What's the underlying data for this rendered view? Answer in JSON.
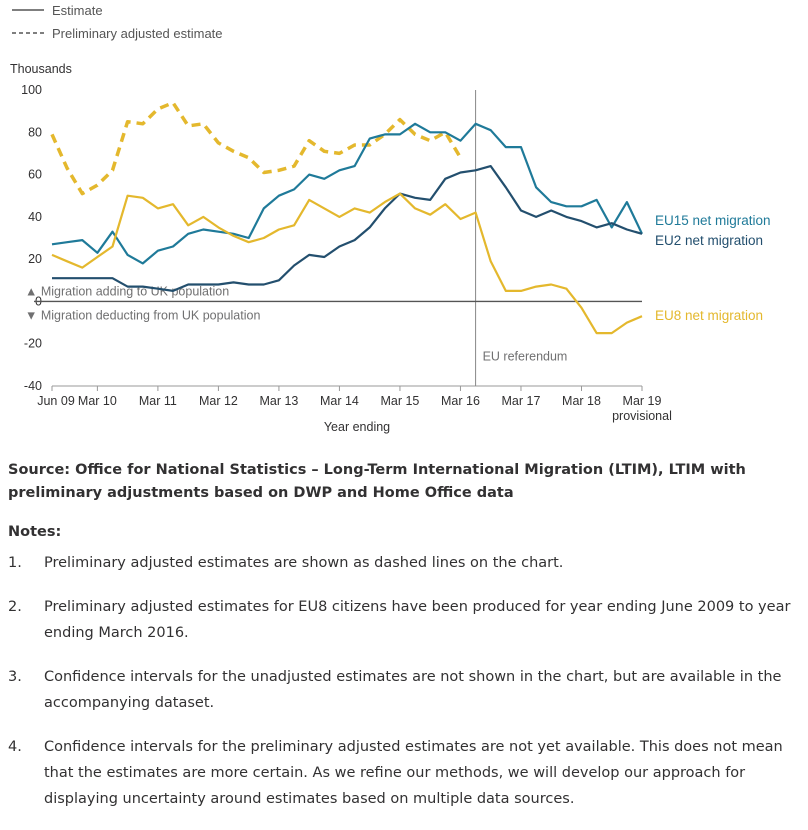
{
  "chart_data": {
    "type": "line",
    "legend": {
      "position": "top-left",
      "estimate_label": "Estimate",
      "adjusted_label": "Preliminary adjusted estimate"
    },
    "ylabel": "Thousands",
    "xlabel": "Year ending",
    "ylim": [
      -40,
      100
    ],
    "yticks": [
      -40,
      -20,
      0,
      20,
      40,
      60,
      80,
      100
    ],
    "xticks": [
      {
        "label": "Jun 09",
        "index": 0
      },
      {
        "label": "Mar 10",
        "index": 3
      },
      {
        "label": "Mar 11",
        "index": 7
      },
      {
        "label": "Mar 12",
        "index": 11
      },
      {
        "label": "Mar 13",
        "index": 15
      },
      {
        "label": "Mar 14",
        "index": 19
      },
      {
        "label": "Mar 15",
        "index": 23
      },
      {
        "label": "Mar 16",
        "index": 27
      },
      {
        "label": "Mar 17",
        "index": 31
      },
      {
        "label": "Mar 18",
        "index": 35
      },
      {
        "label": "Mar 19",
        "sublabel": "provisional",
        "index": 39
      }
    ],
    "period_count": 40,
    "reference_line": {
      "index": 28,
      "label": "EU referendum"
    },
    "zero_annotations": {
      "above": "▲ Migration adding to UK population",
      "below": "▼ Migration deducting from UK population"
    },
    "series": [
      {
        "name": "EU15 net migration",
        "color": "#1f7a99",
        "style": "solid",
        "values": [
          27,
          28,
          29,
          23,
          33,
          22,
          18,
          24,
          26,
          32,
          34,
          33,
          32,
          30,
          44,
          50,
          53,
          60,
          58,
          62,
          64,
          77,
          79,
          79,
          84,
          80,
          80,
          76,
          84,
          81,
          73,
          73,
          54,
          47,
          45,
          45,
          48,
          35,
          47,
          32
        ]
      },
      {
        "name": "EU2 net migration",
        "color": "#234f6e",
        "style": "solid",
        "values": [
          11,
          11,
          11,
          11,
          11,
          7,
          7,
          6,
          5,
          8,
          8,
          8,
          9,
          8,
          8,
          10,
          17,
          22,
          21,
          26,
          29,
          35,
          44,
          51,
          49,
          48,
          58,
          61,
          62,
          64,
          54,
          43,
          40,
          43,
          40,
          38,
          35,
          37,
          34,
          32
        ]
      },
      {
        "name": "EU8 net migration",
        "color": "#e4b82d",
        "style": "solid",
        "values": [
          22,
          19,
          16,
          21,
          26,
          50,
          49,
          44,
          46,
          36,
          40,
          35,
          31,
          28,
          30,
          34,
          36,
          48,
          44,
          40,
          44,
          42,
          47,
          51,
          44,
          41,
          46,
          39,
          42,
          19,
          5,
          5,
          7,
          8,
          6,
          -3,
          -15,
          -15,
          -10,
          -7
        ]
      },
      {
        "name": "",
        "color": "#e4b82d",
        "style": "dashed",
        "values": [
          79,
          63,
          51,
          55,
          62,
          85,
          84,
          91,
          94,
          83,
          84,
          75,
          71,
          68,
          61,
          62,
          64,
          76,
          71,
          70,
          74,
          74,
          79,
          86,
          79,
          76,
          80,
          68,
          null,
          null,
          null,
          null,
          null,
          null,
          null,
          null,
          null,
          null,
          null,
          null
        ]
      }
    ],
    "grid": false
  },
  "source_text": "Source: Office for National Statistics – Long-Term International Migration (LTIM), LTIM with preliminary adjustments based on DWP and Home Office data",
  "notes_title": "Notes:",
  "notes": [
    {
      "number": "1.",
      "text": "Preliminary adjusted estimates are shown as dashed lines on the chart."
    },
    {
      "number": "2.",
      "text": "Preliminary adjusted estimates for EU8 citizens have been produced for year ending June 2009 to year ending March 2016."
    },
    {
      "number": "3.",
      "text": "Confidence intervals for the unadjusted estimates are not shown in the chart, but are available in the accompanying dataset."
    },
    {
      "number": "4.",
      "text": "Confidence intervals for the preliminary adjusted estimates are not yet available. This does not mean that the estimates are more certain. As we refine our methods, we will develop our approach for displaying uncertainty around estimates based on multiple data sources."
    }
  ]
}
